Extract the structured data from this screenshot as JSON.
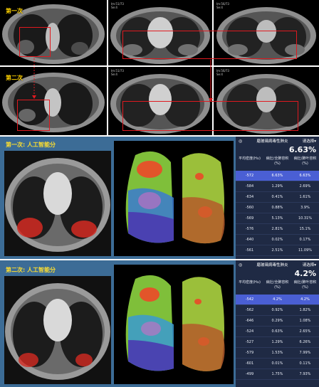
{
  "top": {
    "label_first": "第一次",
    "label_second": "第二次"
  },
  "panel1": {
    "title": "第一次: 人工智能分",
    "header": {
      "tool": "磨玻璃病毒性肺炎",
      "select": "请选择"
    },
    "big_pct": "6.63%",
    "columns": [
      "平均密度(Hu)",
      "病灶/全肺容积 (%)",
      "病灶/肺叶容积 (%)"
    ],
    "rows": [
      [
        "-572",
        "6.63%",
        "6.63%"
      ],
      [
        "-584",
        "1.29%",
        "2.69%"
      ],
      [
        "-634",
        "0.41%",
        "1.61%"
      ],
      [
        "-560",
        "0.88%",
        "3.9%"
      ],
      [
        "-569",
        "5.13%",
        "10.31%"
      ],
      [
        "-576",
        "2.81%",
        "15.1%"
      ],
      [
        "-640",
        "0.02%",
        "0.17%"
      ],
      [
        "-561",
        "2.51%",
        "11.09%"
      ]
    ]
  },
  "panel2": {
    "title": "第二次: 人工智能分",
    "header": {
      "tool": "磨玻璃病毒性肺炎",
      "select": "请选择"
    },
    "big_pct": "4.2%",
    "columns": [
      "平均密度(Hu)",
      "病灶/全肺容积 (%)",
      "病灶/肺叶容积 (%)"
    ],
    "rows": [
      [
        "-542",
        "4.2%",
        "4.2%"
      ],
      [
        "-562",
        "0.92%",
        "1.82%"
      ],
      [
        "-646",
        "0.29%",
        "1.08%"
      ],
      [
        "-524",
        "0.63%",
        "2.65%"
      ],
      [
        "-527",
        "1.29%",
        "6.26%"
      ],
      [
        "-579",
        "1.53%",
        "7.99%"
      ],
      [
        "-601",
        "0.01%",
        "0.11%"
      ],
      [
        "-499",
        "1.75%",
        "7.93%"
      ]
    ]
  },
  "icons": [
    "target-icon",
    "dropdown-caret-icon"
  ],
  "colors": {
    "panel_bg": "#3c6c96",
    "table_bg": "#1f2a44",
    "selected_row": "#4a5fd4",
    "highlight_box": "#e0191f",
    "label_yellow": "#ffd200",
    "lesion_red": "#d42a22"
  }
}
